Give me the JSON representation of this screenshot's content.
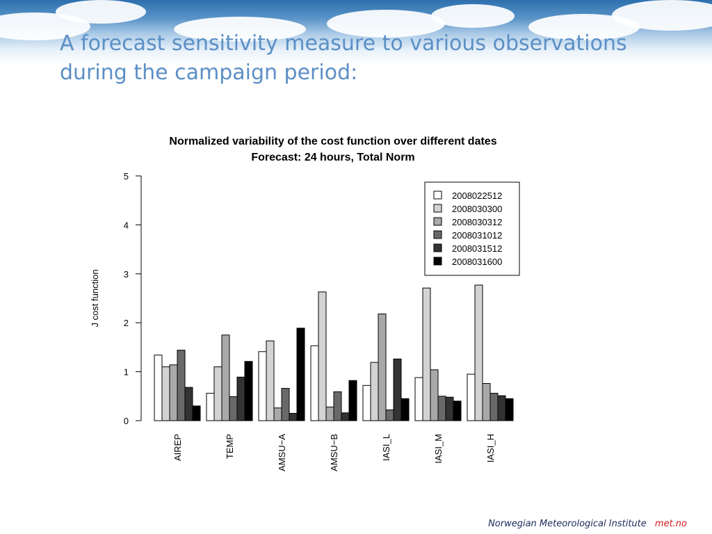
{
  "slide": {
    "title_lines": [
      "A forecast sensitivity measure to various observations",
      "during the campaign period:"
    ],
    "footer_org": "Norwegian Meteorological Institute",
    "footer_brand": "met.no",
    "title_color": "#5b8fc6",
    "brand_color": "#d0191d"
  },
  "chart_data": {
    "type": "bar",
    "title": "Normalized variability of the cost function over different dates",
    "subtitle": "Forecast: 24 hours, Total Norm",
    "xlabel": "",
    "ylabel": "J cost function",
    "ylim": [
      0,
      5
    ],
    "yticks": [
      "0",
      "1",
      "2",
      "3",
      "4",
      "5"
    ],
    "grid": false,
    "legend_position": "top-right",
    "categories": [
      "AIREP",
      "TEMP",
      "AMSU−A",
      "AMSU−B",
      "IASI_L",
      "IASI_M",
      "IASI_H"
    ],
    "series": [
      {
        "name": "2008022512",
        "color": "#ffffff",
        "values": [
          1.34,
          0.56,
          1.41,
          1.53,
          0.72,
          0.88,
          0.95
        ]
      },
      {
        "name": "2008030300",
        "color": "#d3d3d3",
        "values": [
          1.1,
          1.1,
          1.63,
          2.63,
          1.19,
          2.71,
          2.77
        ]
      },
      {
        "name": "2008030312",
        "color": "#a9a9a9",
        "values": [
          1.14,
          1.75,
          0.26,
          0.28,
          2.18,
          1.04,
          0.76
        ]
      },
      {
        "name": "2008031012",
        "color": "#696969",
        "values": [
          1.44,
          0.49,
          0.66,
          0.59,
          0.22,
          0.5,
          0.56
        ]
      },
      {
        "name": "2008031512",
        "color": "#333333",
        "values": [
          0.68,
          0.89,
          0.15,
          0.16,
          1.26,
          0.48,
          0.51
        ]
      },
      {
        "name": "2008031600",
        "color": "#000000",
        "values": [
          0.3,
          1.21,
          1.89,
          0.82,
          0.45,
          0.4,
          0.45
        ]
      }
    ]
  }
}
